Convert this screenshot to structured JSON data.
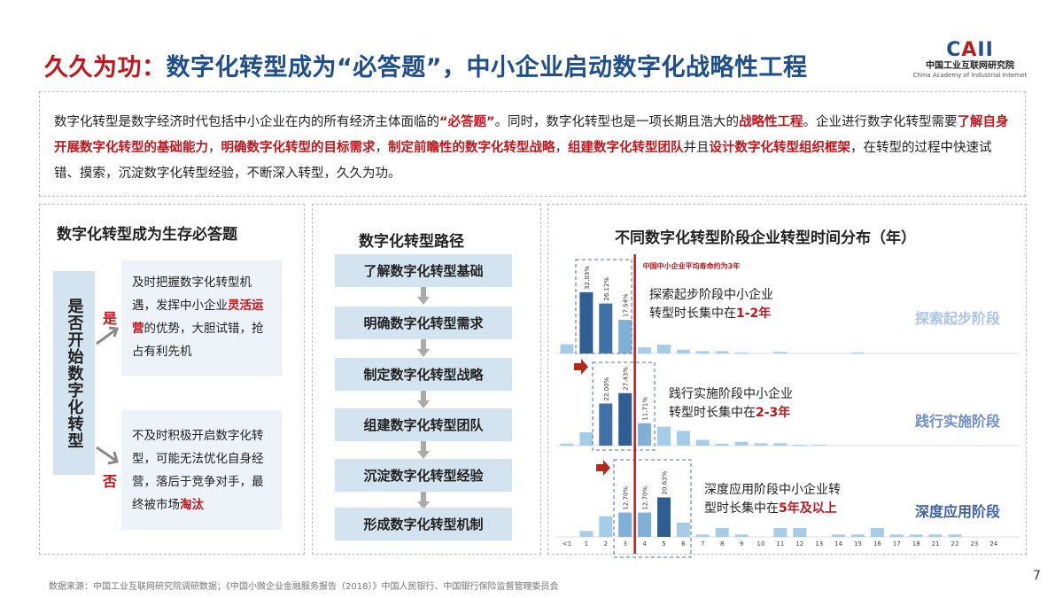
{
  "title": {
    "prefix": "久久为功：",
    "main": "数字化转型成为“必答题”，中小企业启动数字化战略性工程"
  },
  "logo": {
    "mark": "CAII",
    "cn": "中国工业互联网研究院",
    "en": "China Academy of Industrial Internet"
  },
  "intro": [
    {
      "text": "数字化转型是数字经济时代包括中小企业在内的所有经济主体面临的",
      "hl": false
    },
    {
      "text": "“必答题”",
      "hl": true
    },
    {
      "text": "。同时，数字化转型也是一项长期且浩大的",
      "hl": false
    },
    {
      "text": "战略性工程",
      "hl": true
    },
    {
      "text": "。企业进行数字化转型需要",
      "hl": false
    },
    {
      "text": "了解自身开展数字化转型的基础能力",
      "hl": true
    },
    {
      "text": "，",
      "hl": false
    },
    {
      "text": "明确数字化转型的目标需求",
      "hl": true
    },
    {
      "text": "，",
      "hl": false
    },
    {
      "text": "制定前瞻性的数字化转型战略",
      "hl": true
    },
    {
      "text": "，",
      "hl": false
    },
    {
      "text": "组建数字化转型团队",
      "hl": true
    },
    {
      "text": "并且",
      "hl": false
    },
    {
      "text": "设计数字化转型组织框架",
      "hl": true
    },
    {
      "text": "，在转型的过程中快速试错、摸索，沉淀数字化转型经验，不断深入转型，久久为功。",
      "hl": false
    }
  ],
  "left_panel": {
    "title": "数字化转型成为生存必答题",
    "question": "是否开始数字化转型",
    "yes_label": "是",
    "no_label": "否",
    "yes_text": [
      {
        "text": "及时把握数字化转型机遇，发挥中小企业",
        "hl": false
      },
      {
        "text": "灵活运营",
        "hl": true
      },
      {
        "text": "的优势，大胆试错，抢占有利先机",
        "hl": false
      }
    ],
    "no_text": [
      {
        "text": "不及时积极开启数字化转型，可能无法优化自身经营，落后于竞争对手，最终被市场",
        "hl": false
      },
      {
        "text": "淘汰",
        "hl": true
      }
    ]
  },
  "mid_panel": {
    "title": "数字化转型路径",
    "steps": [
      "了解数字化转型基础",
      "明确数字化转型需求",
      "制定数字化转型战略",
      "组建数字化转型团队",
      "沉淀数字化转型经验",
      "形成数字化转型机制"
    ]
  },
  "chart_data": {
    "type": "bar",
    "title": "不同数字化转型阶段企业转型时间分布（年）",
    "categories": [
      "<1",
      "1",
      "2",
      "3",
      "4",
      "5",
      "6",
      "7",
      "8",
      "9",
      "10",
      "11",
      "12",
      "13",
      "14",
      "15",
      "16",
      "17",
      "18",
      "21",
      "22",
      "23",
      "24"
    ],
    "reference_line": {
      "x": 3,
      "label": "中国中小企业平均寿命约为3年",
      "color": "#c0171d"
    },
    "grid": false,
    "series": [
      {
        "name": "探索起步阶段",
        "color": "#a9c4e4",
        "values": [
          4.8,
          32.03,
          26.12,
          17.54,
          3.2,
          4.6,
          2.0,
          1.2,
          1.2,
          0.5,
          0,
          0.8,
          0,
          0,
          0,
          0.5,
          0,
          0,
          0,
          0,
          0,
          0,
          0
        ],
        "labeled": {
          "1": "32.03%",
          "2": "26.12%",
          "3": "17.54%"
        },
        "highlight": [
          "1",
          "2"
        ],
        "note": [
          "探索起步阶段中小企业",
          "转型时长集中在",
          "1-2年"
        ]
      },
      {
        "name": "践行实施阶段",
        "color": "#6f8fc8",
        "values": [
          1.0,
          7.0,
          22.0,
          27.43,
          11.71,
          9.9,
          7.7,
          3.0,
          1.0,
          2.0,
          1.2,
          1.2,
          0.5,
          0.5,
          0,
          0,
          0,
          0,
          0,
          0,
          0,
          0,
          0
        ],
        "labeled": {
          "2": "22.00%",
          "3": "27.43%",
          "4": "11.71%"
        },
        "highlight": [
          "2",
          "3"
        ],
        "note": [
          "践行实施阶段中小企业",
          "转型时长集中在",
          "2-3年"
        ]
      },
      {
        "name": "深度应用阶段",
        "color": "#3f62a8",
        "values": [
          0,
          3.1,
          10.8,
          12.7,
          12.7,
          20.63,
          7.4,
          1.2,
          4.6,
          1.2,
          0,
          4.6,
          4.6,
          0,
          1.2,
          1.2,
          4.6,
          1.2,
          1.2,
          1.2,
          1.2,
          0,
          0
        ],
        "labeled": {
          "3": "12.70%",
          "4": "12.70%",
          "5": "20.63%"
        },
        "highlight": [
          "5"
        ],
        "note": [
          "深度应用阶段中小企业转",
          "型时长集中在",
          "5年及以上"
        ]
      }
    ]
  },
  "footer": {
    "source": "数据来源：中国工业互联网研究院调研数据；《中国小微企业金融服务报告（2018）》中国人民银行、中国银行保险监督管理委员会",
    "page": "7"
  }
}
